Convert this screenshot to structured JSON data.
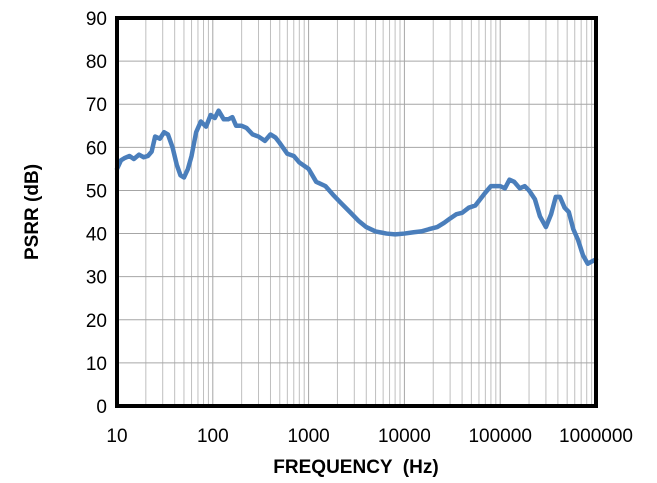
{
  "chart_data": {
    "type": "line",
    "title": "",
    "xlabel": "FREQUENCY  (Hz)",
    "ylabel": "PSRR (dB)",
    "x_scale": "log",
    "xlim": [
      10,
      1000000
    ],
    "ylim": [
      0,
      90
    ],
    "x_ticks": [
      "10",
      "100",
      "1000",
      "10000",
      "100000",
      "1000000"
    ],
    "y_ticks": [
      "0",
      "10",
      "20",
      "30",
      "40",
      "50",
      "60",
      "70",
      "80",
      "90"
    ],
    "grid": true,
    "legend": "none",
    "series_color": "#4a7ebb",
    "series": [
      {
        "x": [
          10,
          11,
          12,
          13.5,
          15,
          17,
          19,
          21,
          23,
          25,
          28,
          31,
          34,
          38,
          42,
          46,
          50,
          55,
          60,
          67,
          75,
          85,
          95,
          105,
          115,
          130,
          145,
          160,
          175,
          200,
          225,
          260,
          300,
          350,
          400,
          450,
          500,
          600,
          700,
          800,
          1000,
          1200,
          1500,
          1800,
          2200,
          2700,
          3300,
          4000,
          5000,
          6500,
          8000,
          10000,
          12500,
          15000,
          18000,
          22000,
          26000,
          30000,
          35000,
          40000,
          47000,
          55000,
          62000,
          70000,
          80000,
          90000,
          100000,
          112000,
          125000,
          140000,
          160000,
          180000,
          200000,
          230000,
          260000,
          300000,
          340000,
          380000,
          420000,
          470000,
          520000,
          580000,
          650000,
          730000,
          820000,
          900000,
          1000000
        ],
        "y": [
          55,
          57,
          57.5,
          58,
          57.3,
          58.3,
          57.7,
          58,
          59,
          62.5,
          62,
          63.5,
          63,
          60,
          56,
          53.5,
          53,
          55,
          58,
          63.5,
          66,
          64.8,
          67.5,
          66.8,
          68.5,
          66.5,
          66.5,
          67,
          65,
          65,
          64.5,
          63,
          62.5,
          61.5,
          63,
          62.3,
          61,
          58.5,
          58,
          56.5,
          55,
          52,
          51,
          49,
          47,
          45,
          43,
          41.5,
          40.5,
          40,
          39.8,
          40,
          40.3,
          40.5,
          41,
          41.5,
          42.5,
          43.5,
          44.5,
          44.8,
          46,
          46.5,
          48,
          49.5,
          51,
          51,
          51,
          50.5,
          52.5,
          52,
          50.5,
          51,
          50,
          48,
          44,
          41.5,
          44.5,
          48.5,
          48.5,
          46,
          45,
          41,
          38.5,
          35,
          33,
          33.5,
          34
        ]
      }
    ]
  }
}
